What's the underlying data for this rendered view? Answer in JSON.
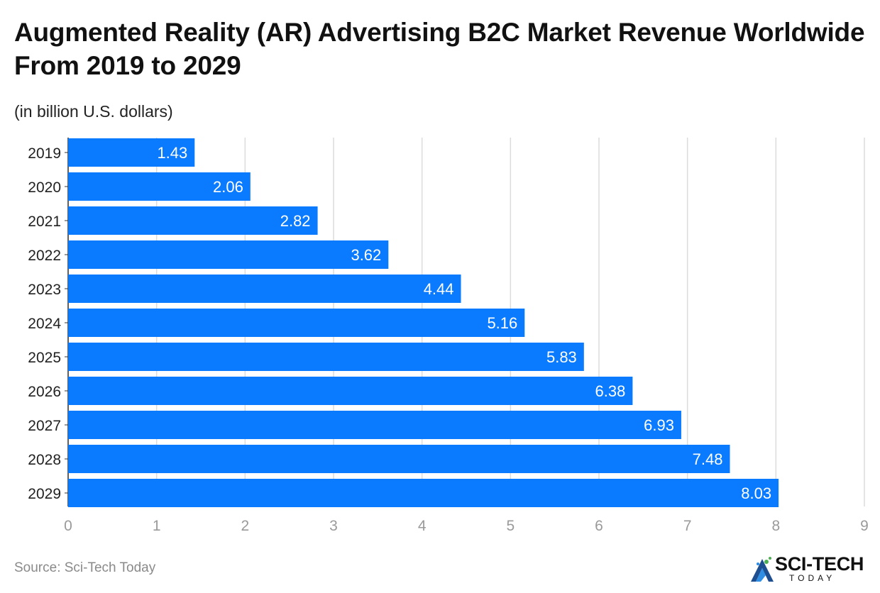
{
  "title": "Augmented Reality (AR) Advertising B2C Market Revenue Worldwide From 2019 to 2029",
  "subtitle": "(in billion U.S. dollars)",
  "source": "Source: Sci-Tech Today",
  "logo": {
    "name": "SCI-TECH",
    "tagline": "TODAY"
  },
  "colors": {
    "bar": "#0a7aff",
    "grid": "#dcdcdc",
    "axis_label": "#9a9a9a",
    "category_label": "#222222",
    "value_label": "#ffffff"
  },
  "chart_data": {
    "type": "bar",
    "orientation": "horizontal",
    "categories": [
      "2019",
      "2020",
      "2021",
      "2022",
      "2023",
      "2024",
      "2025",
      "2026",
      "2027",
      "2028",
      "2029"
    ],
    "values": [
      1.43,
      2.06,
      2.82,
      3.62,
      4.44,
      5.16,
      5.83,
      6.38,
      6.93,
      7.48,
      8.03
    ],
    "value_labels": [
      "1.43",
      "2.06",
      "2.82",
      "3.62",
      "4.44",
      "5.16",
      "5.83",
      "6.38",
      "6.93",
      "7.48",
      "8.03"
    ],
    "xlim": [
      0,
      9
    ],
    "xticks": [
      "0",
      "1",
      "2",
      "3",
      "4",
      "5",
      "6",
      "7",
      "8",
      "9"
    ],
    "xlabel": "",
    "ylabel": "",
    "grid": true,
    "legend": false
  }
}
